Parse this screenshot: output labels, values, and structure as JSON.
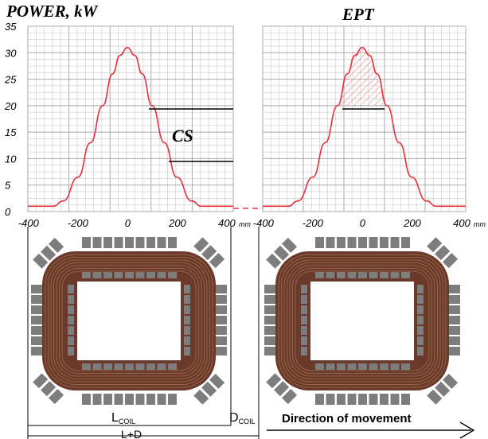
{
  "left_chart": {
    "title": "POWER, kW",
    "y_ticks": [
      "35",
      "30",
      "25",
      "20",
      "15",
      "10",
      "5",
      "0"
    ],
    "x_ticks": [
      "-400",
      "-200",
      "0",
      "200",
      "400"
    ],
    "x_unit": "mm",
    "label": "CS"
  },
  "right_chart": {
    "title": "EPT",
    "x_ticks": [
      "-400",
      "-200",
      "0",
      "200",
      "400"
    ],
    "x_unit": "mm"
  },
  "dimensions": {
    "l_coil_main": "L",
    "l_coil_sub": "COIL",
    "d_coil_main": "D",
    "d_coil_sub": "COIL",
    "l_plus_d": "L+D"
  },
  "direction_label": "Direction of movement",
  "colors": {
    "curve": "#e8303a",
    "grid": "#b8b8b8",
    "coil": "#6b3a2a",
    "block": "#7d7d7d",
    "hatch": "#e8707a"
  },
  "chart_data": {
    "type": "line",
    "xlabel": "",
    "ylabel": "POWER, kW",
    "xlim": [
      -450,
      450
    ],
    "ylim": [
      0,
      35
    ],
    "series": [
      {
        "x": [
          -450,
          -300,
          -260,
          -200,
          -150,
          -100,
          -60,
          -30,
          0,
          30,
          60,
          100,
          150,
          200,
          260,
          300,
          450
        ],
        "y": [
          1,
          1,
          2,
          6.5,
          13,
          20,
          26,
          29.5,
          31,
          29.5,
          26,
          20,
          13,
          6.5,
          2,
          1,
          1
        ]
      }
    ]
  }
}
